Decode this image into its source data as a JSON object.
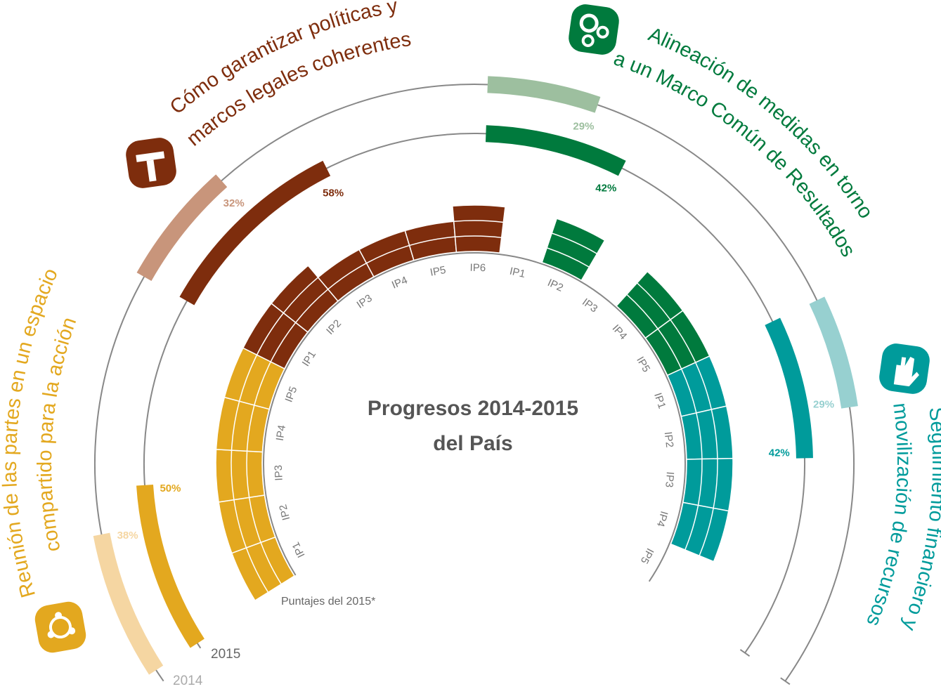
{
  "chart_data": {
    "type": "radial-progress",
    "title_lines": [
      "Progresos 2014-2015",
      "del País"
    ],
    "note": "Puntajes del 2015*",
    "year_2015": "2015",
    "year_2014": "2014",
    "pct_lim": [
      0,
      100
    ],
    "series": [
      {
        "name_lines": [
          "Reunión de las partes en un espacio",
          "compartido para la acción"
        ],
        "color_2015": "#e3a81f",
        "color_2014": "#f5d6a2",
        "value_2015": 50,
        "value_label_2015": "50%",
        "value_2014": 38,
        "value_label_2014": "38%",
        "indicators": [
          "IP1",
          "IP2",
          "IP3",
          "IP4",
          "IP5"
        ],
        "scores": [
          3,
          3,
          3,
          3,
          3
        ]
      },
      {
        "name_lines": [
          "Cómo garantizar políticas y",
          "marcos legales coherentes"
        ],
        "color_2015": "#7e2d0d",
        "color_2014": "#c8957b",
        "value_2015": 58,
        "value_label_2015": "58%",
        "value_2014": 32,
        "value_label_2014": "32%",
        "indicators": [
          "IP1",
          "IP2",
          "IP3",
          "IP4",
          "IP5",
          "IP6"
        ],
        "scores": [
          3,
          3,
          2,
          2,
          2,
          3
        ]
      },
      {
        "name_lines": [
          "Alineación de medidas en torno",
          "a un Marco Común de Resultados"
        ],
        "color_2015": "#007a3d",
        "color_2014": "#9dbf9f",
        "value_2015": 42,
        "value_label_2015": "42%",
        "value_2014": 29,
        "value_label_2014": "29%",
        "indicators": [
          "IP1",
          "IP2",
          "IP3",
          "IP4",
          "IP5"
        ],
        "scores": [
          0,
          3,
          0,
          3,
          3
        ]
      },
      {
        "name_lines": [
          "Seguimiento financiero y",
          "movilización de recursos"
        ],
        "color_2015": "#009b9b",
        "color_2014": "#97d0d0",
        "value_2015": 42,
        "value_label_2015": "42%",
        "value_2014": 29,
        "value_label_2014": "29%",
        "indicators": [
          "IP1",
          "IP2",
          "IP3",
          "IP4",
          "IP5"
        ],
        "scores": [
          3,
          3,
          3,
          3,
          0
        ]
      }
    ]
  }
}
